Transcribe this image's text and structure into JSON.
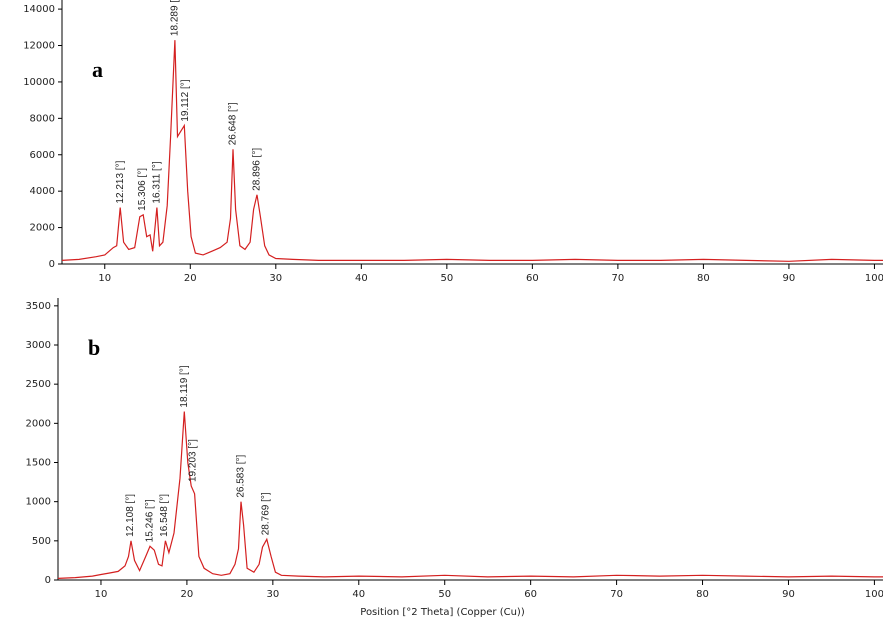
{
  "chart_data": [
    {
      "type": "line",
      "label": "a",
      "color": "#d42020",
      "x": [
        5,
        7,
        9,
        10,
        10.5,
        11,
        11.4,
        11.8,
        12.2,
        12.8,
        13.5,
        14.1,
        14.5,
        14.9,
        15.3,
        15.6,
        16.1,
        16.4,
        16.8,
        17.3,
        17.7,
        18.2,
        18.5,
        18.9,
        19.3,
        19.7,
        20.1,
        20.6,
        21.5,
        22.5,
        23.5,
        24.3,
        24.7,
        25,
        25.3,
        25.8,
        26.4,
        27,
        27.4,
        27.8,
        28.2,
        28.7,
        29.2,
        30,
        32,
        35,
        40,
        45,
        50,
        55,
        60,
        65,
        70,
        75,
        80,
        85,
        90,
        95,
        100,
        101
      ],
      "values": [
        200,
        250,
        400,
        500,
        700,
        900,
        1000,
        3100,
        1200,
        800,
        900,
        2600,
        2700,
        1500,
        1600,
        700,
        3100,
        1000,
        1200,
        3200,
        7000,
        12300,
        7000,
        7300,
        7600,
        4000,
        1500,
        600,
        500,
        700,
        900,
        1200,
        2500,
        6300,
        3000,
        1000,
        800,
        1200,
        3000,
        3800,
        2600,
        1000,
        500,
        300,
        250,
        200,
        200,
        200,
        250,
        200,
        200,
        250,
        200,
        200,
        250,
        200,
        150,
        250,
        200,
        200
      ],
      "xlim": [
        5,
        101
      ],
      "xticks": [
        10,
        20,
        30,
        40,
        50,
        60,
        70,
        80,
        90,
        100
      ],
      "ylim": [
        0,
        14500
      ],
      "yticks": [
        0,
        2000,
        4000,
        6000,
        8000,
        10000,
        12000,
        14000
      ],
      "annotations": [
        {
          "label": "12.213 [°]",
          "x": 11.8,
          "y": 3100
        },
        {
          "label": "15.306 [°]",
          "x": 14.4,
          "y": 2700
        },
        {
          "label": "16.311 [°]",
          "x": 16.1,
          "y": 3100
        },
        {
          "label": "18.289 [°]",
          "x": 18.2,
          "y": 12300
        },
        {
          "label": "19.112 [°]",
          "x": 19.4,
          "y": 7600
        },
        {
          "label": "26.648 [°]",
          "x": 25,
          "y": 6300
        },
        {
          "label": "28.896 [°]",
          "x": 27.8,
          "y": 3800
        }
      ]
    },
    {
      "type": "line",
      "label": "b",
      "color": "#d42020",
      "x": [
        5,
        7,
        9,
        10,
        11,
        12,
        12.8,
        13.2,
        13.5,
        13.9,
        14.5,
        15.2,
        15.7,
        16.2,
        16.7,
        17.1,
        17.5,
        17.9,
        18.5,
        19.2,
        19.7,
        20.1,
        20.5,
        20.9,
        21.4,
        22,
        23,
        24,
        25,
        25.6,
        26,
        26.3,
        26.6,
        27,
        27.8,
        28.4,
        28.8,
        29.3,
        29.8,
        30.3,
        31,
        33,
        36,
        40,
        45,
        50,
        55,
        60,
        65,
        70,
        75,
        80,
        85,
        90,
        95,
        100,
        101
      ],
      "values": [
        20,
        30,
        50,
        70,
        90,
        110,
        180,
        300,
        500,
        250,
        120,
        300,
        430,
        380,
        200,
        180,
        500,
        350,
        600,
        1300,
        2150,
        1500,
        1200,
        1100,
        300,
        150,
        80,
        60,
        80,
        200,
        400,
        1000,
        700,
        150,
        100,
        200,
        420,
        520,
        300,
        100,
        60,
        50,
        40,
        50,
        40,
        60,
        40,
        50,
        40,
        60,
        50,
        60,
        50,
        40,
        50,
        40,
        40
      ],
      "xlim": [
        5,
        101
      ],
      "xticks": [
        10,
        20,
        30,
        40,
        50,
        60,
        70,
        80,
        90,
        100
      ],
      "ylim": [
        0,
        3600
      ],
      "yticks": [
        0,
        500,
        1000,
        1500,
        2000,
        2500,
        3000,
        3500
      ],
      "x_label": "Position [°2 Theta] (Copper (Cu))",
      "annotations": [
        {
          "label": "12.108 [°]",
          "x": 13.4,
          "y": 500
        },
        {
          "label": "15.246 [°]",
          "x": 15.7,
          "y": 430
        },
        {
          "label": "16.548 [°]",
          "x": 17.4,
          "y": 500
        },
        {
          "label": "18.119 [°]",
          "x": 19.7,
          "y": 2150
        },
        {
          "label": "19.203 [°]",
          "x": 20.7,
          "y": 1200
        },
        {
          "label": "26.583 [°]",
          "x": 26.3,
          "y": 1000
        },
        {
          "label": "28.769 [°]",
          "x": 29.2,
          "y": 520
        }
      ]
    }
  ]
}
